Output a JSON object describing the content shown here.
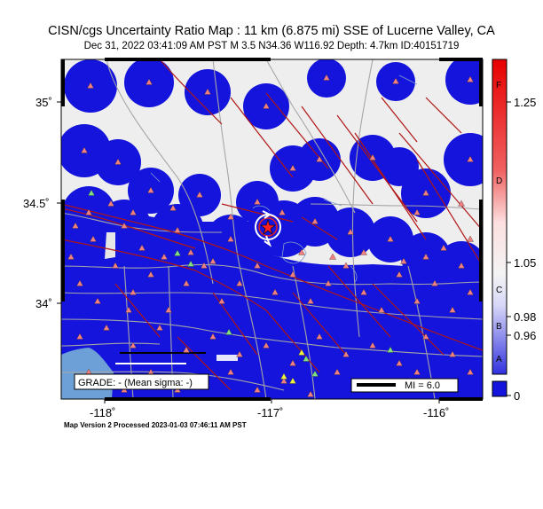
{
  "header": {
    "title": "CISN/cgs Uncertainty Ratio Map : 11 km (6.875 mi) SSE of Lucerne Valley, CA",
    "subtitle": "Dec 31, 2022 03:41:09 AM PST   M 3.5   N34.36 W116.92   Depth: 4.7km   ID:40151719"
  },
  "map": {
    "lat_labels": [
      "35˚",
      "34.5˚",
      "34˚"
    ],
    "lon_labels": [
      "-118˚",
      "-117˚",
      "-116˚"
    ],
    "grade_box": "GRADE: - (Mean sigma: -)",
    "scale_bar": "MI = 6.0",
    "colors": {
      "low_uncertainty": "#1010e0",
      "background": "#eeeeee",
      "ocean": "#6ea0d8",
      "fault": "#b01010",
      "road": "#a0a0a0",
      "station": "#f08080",
      "station_alt": "#80e080",
      "station_yellow": "#f0f040"
    },
    "epicenter_icon": "epicenter-star-icon"
  },
  "colorbar": {
    "letter_labels": [
      "F",
      "D",
      "C",
      "B",
      "A"
    ],
    "value_labels": [
      "1.25",
      "1.05",
      "0.98",
      "0.96",
      "0"
    ]
  },
  "footer": {
    "text": "Map Version 2 Processed 2023-01-03 07:46:11 AM PST"
  }
}
